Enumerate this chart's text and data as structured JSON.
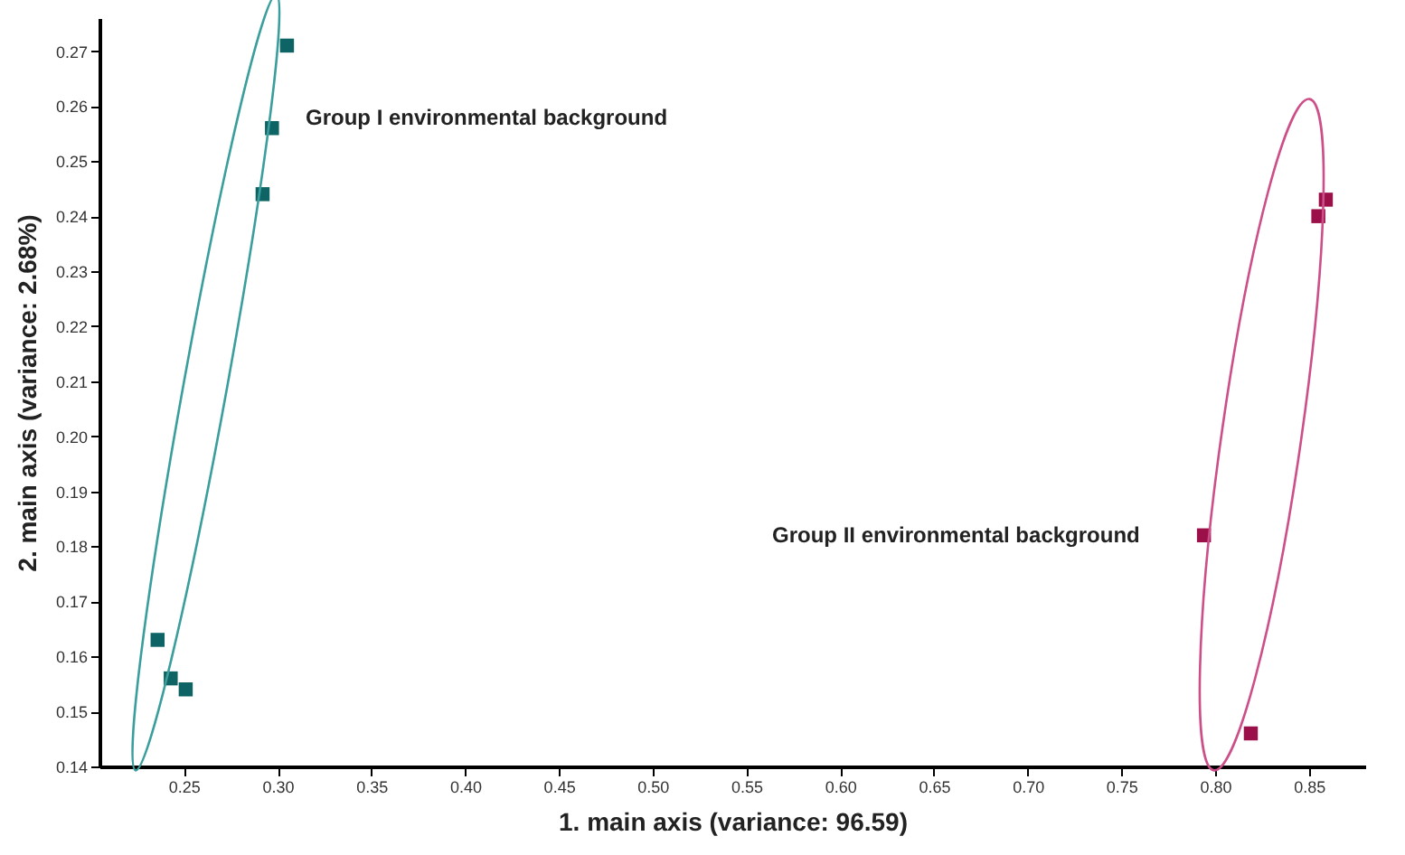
{
  "chart_data": {
    "type": "scatter",
    "xlabel": "1. main axis (variance: 96.59)",
    "ylabel": "2. main axis (variance: 2.68%)",
    "xlim": [
      0.205,
      0.88
    ],
    "ylim": [
      0.14,
      0.276
    ],
    "xticks": [
      0.25,
      {
        "value": 0.3,
        "label": "0.30"
      },
      0.35,
      {
        "value": 0.4,
        "label": "0.40"
      },
      0.45,
      {
        "value": 0.5,
        "label": "0.50"
      },
      0.55,
      {
        "value": 0.6,
        "label": "0.60"
      },
      0.65,
      {
        "value": 0.7,
        "label": "0.70"
      },
      0.75,
      {
        "value": 0.8,
        "label": "0.80"
      },
      0.85
    ],
    "yticks": [
      0.14,
      0.15,
      0.16,
      0.17,
      0.18,
      0.19,
      {
        "value": 0.2,
        "label": "0.20"
      },
      0.21,
      0.22,
      0.23,
      0.24,
      0.25,
      0.26,
      0.27
    ],
    "marker": "square",
    "grid": false,
    "legend": false,
    "series": [
      {
        "color": "#0e6464",
        "x": [
          0.236,
          0.243,
          0.251,
          0.292,
          0.297,
          0.305
        ],
        "values": [
          0.163,
          0.156,
          0.154,
          0.244,
          0.256,
          0.271
        ]
      },
      {
        "color": "#9b1049",
        "x": [
          0.794,
          0.819,
          0.855,
          0.859
        ],
        "values": [
          0.182,
          0.146,
          0.24,
          0.243
        ]
      }
    ],
    "annotations": [
      "Group I environmental background",
      "Group II environmental background"
    ]
  }
}
